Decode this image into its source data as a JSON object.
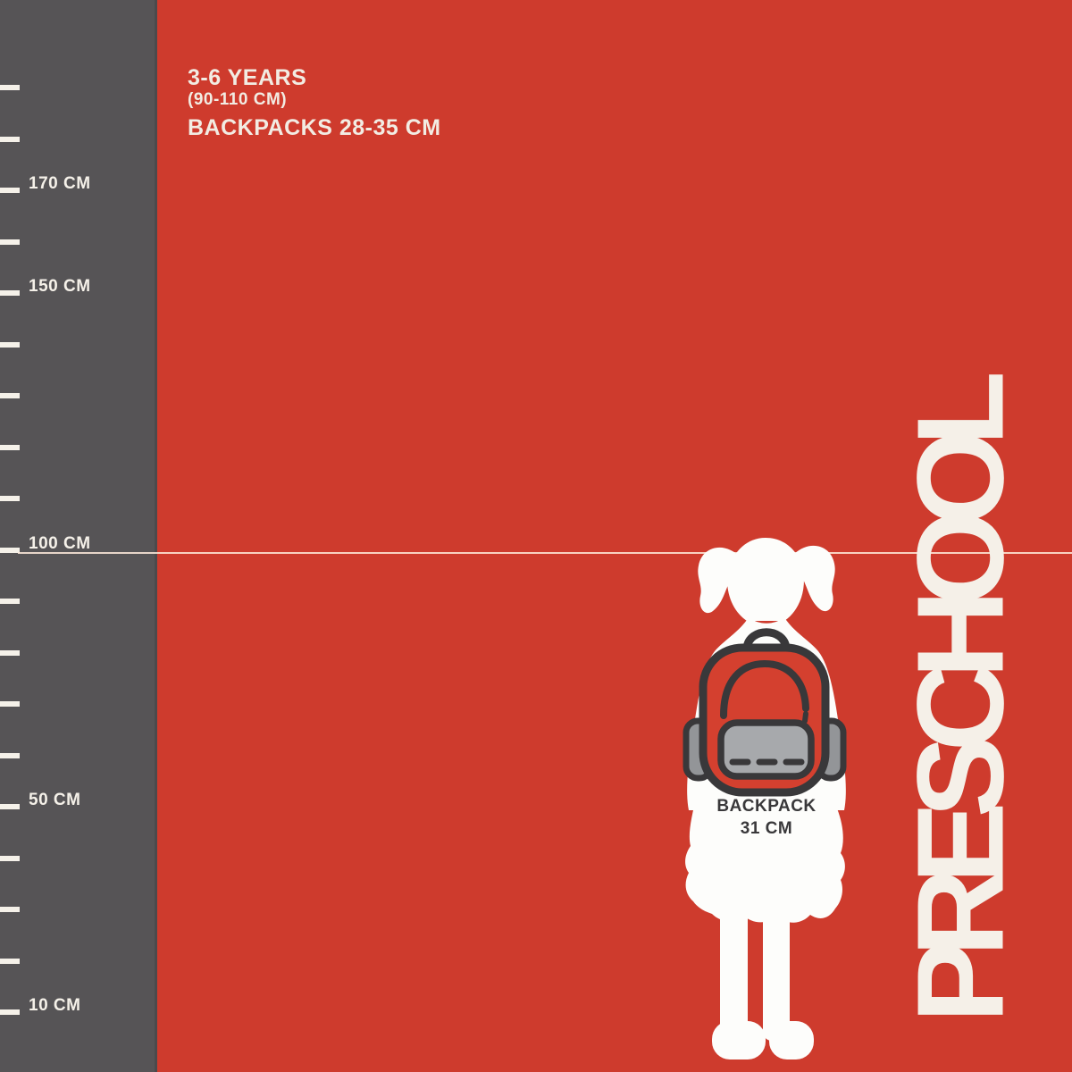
{
  "header": {
    "age_range": "3-6 YEARS",
    "height_range": "(90-110 CM)",
    "backpack_range": "BACKPACKS 28-35 CM"
  },
  "ruler": {
    "unit": "CM",
    "ticks": [
      {
        "cm": 190,
        "label": ""
      },
      {
        "cm": 180,
        "label": ""
      },
      {
        "cm": 170,
        "label": "170 CM"
      },
      {
        "cm": 160,
        "label": ""
      },
      {
        "cm": 150,
        "label": "150 CM"
      },
      {
        "cm": 140,
        "label": ""
      },
      {
        "cm": 130,
        "label": ""
      },
      {
        "cm": 120,
        "label": ""
      },
      {
        "cm": 110,
        "label": ""
      },
      {
        "cm": 100,
        "label": "100 CM"
      },
      {
        "cm": 90,
        "label": ""
      },
      {
        "cm": 80,
        "label": ""
      },
      {
        "cm": 70,
        "label": ""
      },
      {
        "cm": 60,
        "label": ""
      },
      {
        "cm": 50,
        "label": "50 CM"
      },
      {
        "cm": 40,
        "label": ""
      },
      {
        "cm": 30,
        "label": ""
      },
      {
        "cm": 20,
        "label": ""
      },
      {
        "cm": 10,
        "label": "10 CM"
      }
    ],
    "guide_line_cm": 100
  },
  "figure": {
    "backpack_label": "BACKPACK",
    "backpack_size": "31 CM"
  },
  "category_label": "PRESCHOOL",
  "colors": {
    "background_red": "#ce3b2d",
    "ruler_gray": "#565456",
    "seam_gray": "#4b4a4c",
    "tick_cream": "#f5f1e9",
    "accent_cream": "#f2ece3",
    "label_cream": "#f5f0e8",
    "silhouette_white": "#fdfdfb",
    "backpack_red": "#d4402f",
    "outline_charcoal": "#39383a",
    "pocket_gray": "#a7a9ac",
    "tab_gray": "#939598"
  }
}
